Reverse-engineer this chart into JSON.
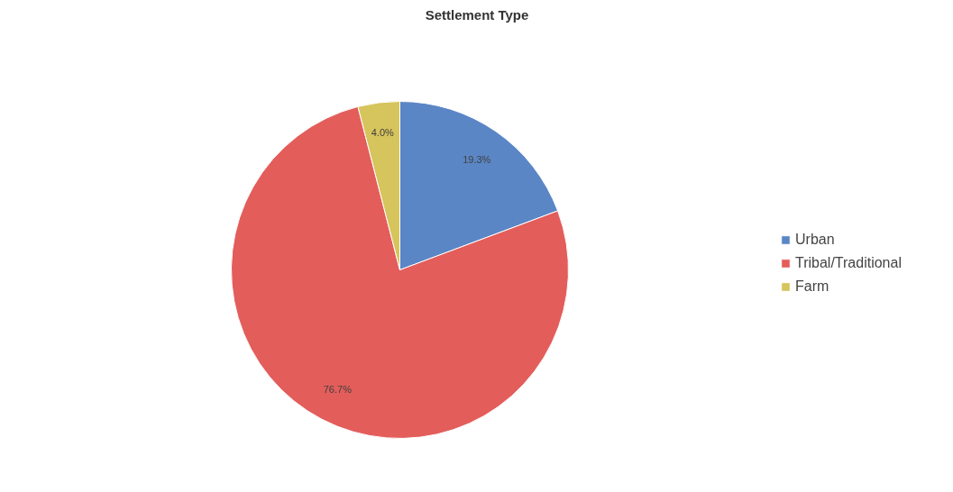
{
  "chart_data": {
    "type": "pie",
    "title": "Settlement Type",
    "categories": [
      "Urban",
      "Tribal/Traditional",
      "Farm"
    ],
    "values": [
      19.3,
      76.7,
      4.0
    ],
    "colors": [
      "#5b86c6",
      "#e35d5b",
      "#d6c45c"
    ],
    "value_labels": [
      "19.3%",
      "76.7%",
      "4.0%"
    ],
    "legend": "right"
  }
}
